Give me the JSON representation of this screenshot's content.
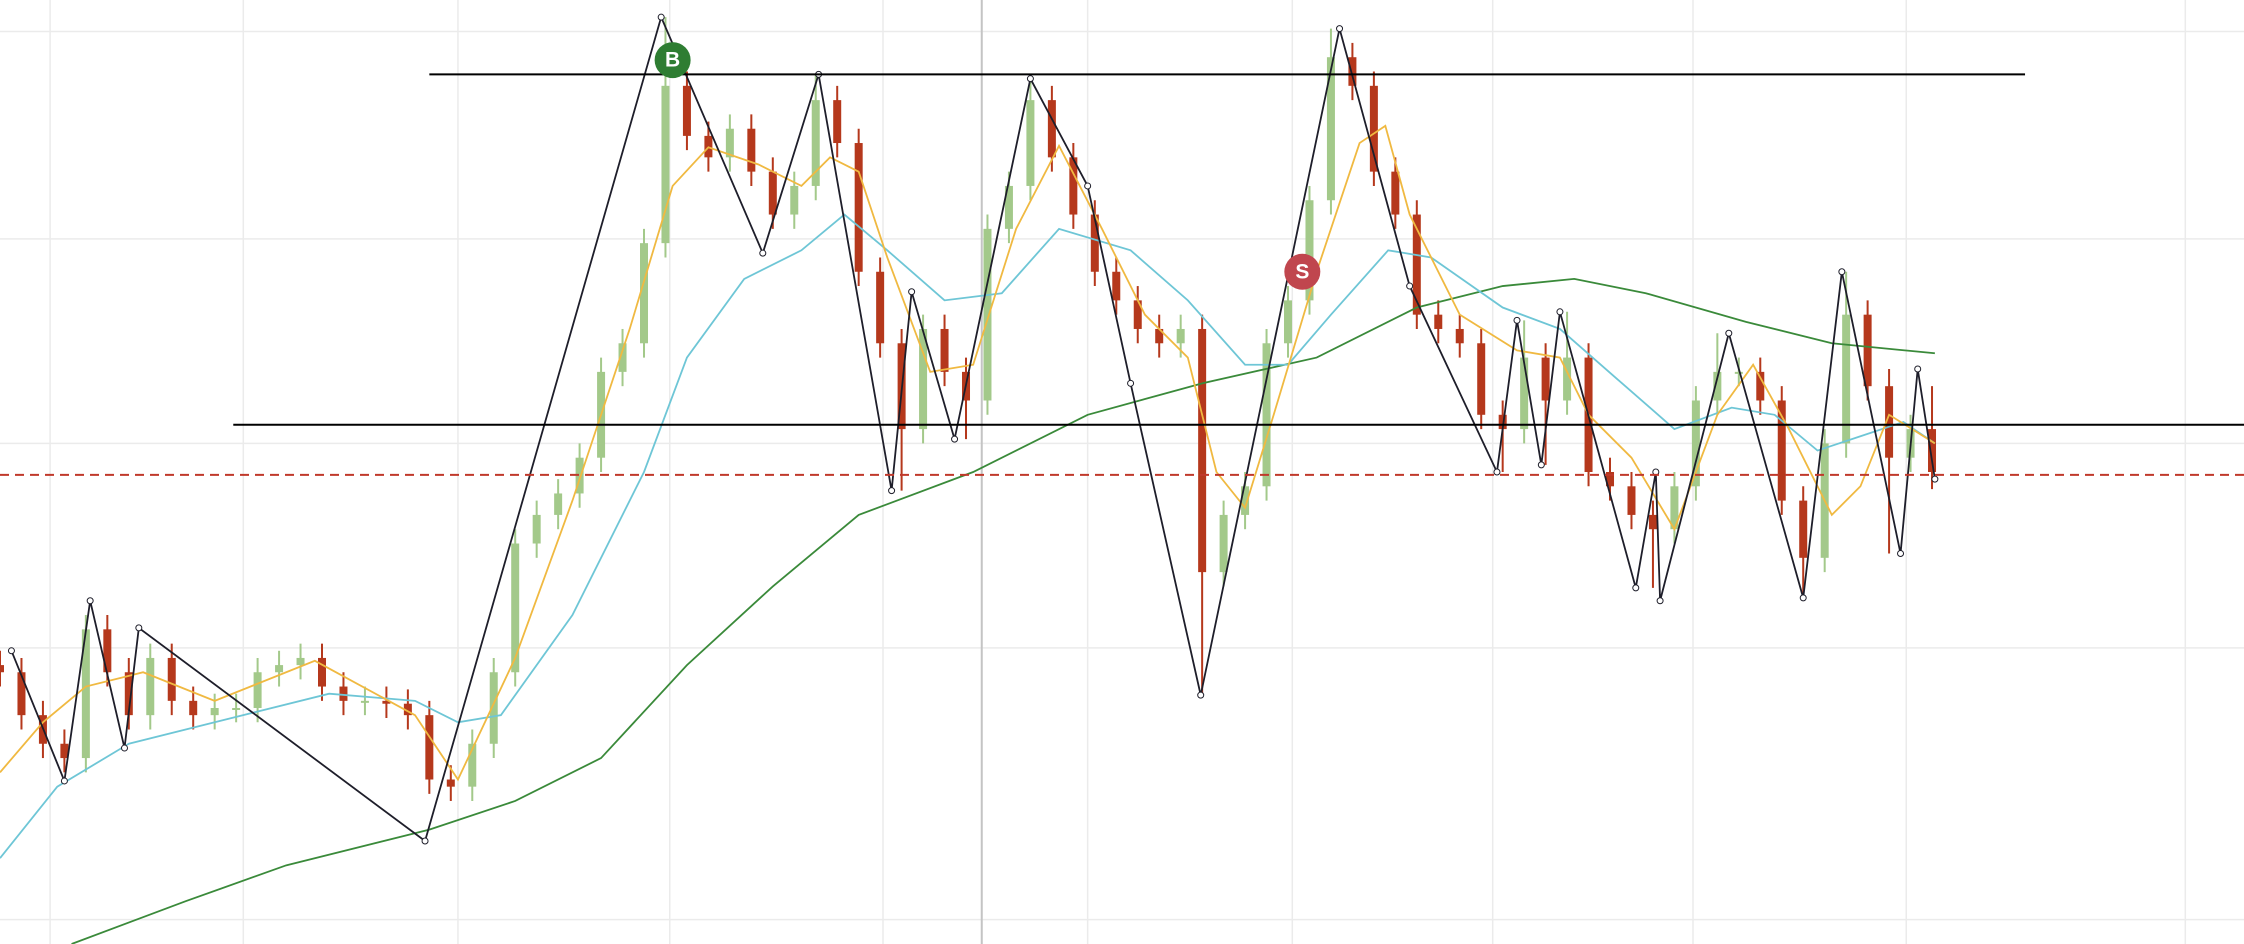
{
  "chart_data": {
    "type": "candlestick",
    "xlim": [
      0,
      1568
    ],
    "ylim": [
      0,
      660
    ],
    "xticks": [
      35,
      170,
      320,
      468,
      617,
      760,
      903,
      1043,
      1183,
      1332,
      1527
    ],
    "yticks": [
      17,
      207,
      350,
      493,
      638
    ],
    "grid": true,
    "grid_color": "#ebebeb",
    "crosshair_x": 686,
    "up_color": "#a3c98a",
    "down_color": "#b5381c",
    "candles": {
      "x": [
        0,
        15,
        30,
        45,
        60,
        75,
        90,
        105,
        120,
        135,
        150,
        165,
        180,
        195,
        210,
        225,
        240,
        255,
        270,
        285,
        300,
        315,
        330,
        345,
        360,
        375,
        390,
        405,
        420,
        435,
        450,
        465,
        480,
        495,
        510,
        525,
        540,
        555,
        570,
        585,
        600,
        615,
        630,
        645,
        660,
        675,
        690,
        705,
        720,
        735,
        750,
        765,
        780,
        795,
        810,
        825,
        840,
        855,
        870,
        885,
        900,
        915,
        930,
        945,
        960,
        975,
        990,
        1005,
        1020,
        1035,
        1050,
        1065,
        1080,
        1095,
        1110,
        1125,
        1140,
        1155,
        1170,
        1185,
        1200,
        1215,
        1230,
        1245,
        1260,
        1275,
        1290,
        1305,
        1320,
        1335,
        1350
      ],
      "open": [
        195,
        190,
        160,
        140,
        130,
        220,
        190,
        160,
        200,
        170,
        160,
        165,
        165,
        190,
        195,
        200,
        180,
        170,
        170,
        168,
        160,
        115,
        110,
        140,
        190,
        280,
        300,
        315,
        340,
        400,
        420,
        490,
        600,
        565,
        550,
        570,
        540,
        510,
        530,
        590,
        560,
        470,
        420,
        360,
        430,
        400,
        380,
        500,
        530,
        590,
        550,
        510,
        470,
        450,
        430,
        420,
        430,
        260,
        300,
        320,
        420,
        450,
        520,
        620,
        600,
        540,
        510,
        440,
        430,
        420,
        370,
        360,
        410,
        380,
        410,
        330,
        320,
        300,
        290,
        320,
        380,
        400,
        400,
        380,
        310,
        270,
        350,
        440,
        390,
        340,
        360
      ],
      "high": [
        205,
        200,
        170,
        150,
        230,
        230,
        200,
        210,
        210,
        180,
        175,
        175,
        200,
        205,
        210,
        210,
        190,
        180,
        180,
        178,
        170,
        125,
        150,
        200,
        290,
        310,
        325,
        350,
        410,
        430,
        500,
        648,
        610,
        575,
        580,
        580,
        550,
        540,
        608,
        600,
        570,
        480,
        430,
        440,
        440,
        410,
        510,
        540,
        605,
        600,
        560,
        520,
        480,
        460,
        440,
        440,
        440,
        310,
        330,
        430,
        460,
        530,
        640,
        630,
        610,
        550,
        520,
        450,
        440,
        430,
        380,
        436,
        420,
        442,
        420,
        340,
        330,
        310,
        330,
        390,
        427,
        410,
        410,
        390,
        320,
        360,
        470,
        450,
        402,
        370,
        390
      ],
      "low": [
        180,
        150,
        130,
        120,
        120,
        180,
        150,
        150,
        160,
        150,
        150,
        155,
        155,
        180,
        185,
        170,
        160,
        160,
        158,
        150,
        105,
        100,
        100,
        130,
        180,
        270,
        290,
        305,
        330,
        390,
        410,
        480,
        555,
        540,
        540,
        530,
        500,
        500,
        520,
        550,
        460,
        410,
        317,
        350,
        390,
        353,
        370,
        490,
        520,
        540,
        500,
        460,
        440,
        420,
        410,
        410,
        174,
        250,
        290,
        310,
        410,
        440,
        510,
        590,
        530,
        500,
        430,
        420,
        410,
        360,
        330,
        350,
        335,
        370,
        320,
        310,
        290,
        249,
        280,
        310,
        370,
        390,
        370,
        300,
        242,
        260,
        340,
        380,
        273,
        330,
        318
      ],
      "close": [
        190,
        160,
        140,
        130,
        220,
        190,
        160,
        200,
        170,
        160,
        165,
        165,
        190,
        195,
        200,
        180,
        170,
        170,
        168,
        160,
        115,
        110,
        140,
        190,
        280,
        300,
        315,
        340,
        400,
        420,
        490,
        600,
        565,
        550,
        570,
        540,
        510,
        530,
        590,
        560,
        470,
        420,
        360,
        430,
        400,
        380,
        500,
        530,
        590,
        550,
        510,
        470,
        450,
        430,
        420,
        430,
        260,
        300,
        320,
        420,
        450,
        520,
        620,
        600,
        540,
        510,
        440,
        430,
        420,
        370,
        360,
        410,
        380,
        410,
        330,
        320,
        300,
        290,
        320,
        380,
        400,
        400,
        380,
        310,
        270,
        350,
        440,
        390,
        340,
        360,
        330
      ]
    },
    "series": [
      {
        "color": "#3a8a3a",
        "x": [
          50,
          130,
          200,
          300,
          360,
          420,
          480,
          540,
          600,
          680,
          760,
          840,
          920,
          990,
          1050,
          1100,
          1150,
          1220,
          1280,
          1352
        ],
        "values": [
          0,
          30,
          55,
          80,
          100,
          130,
          195,
          250,
          300,
          330,
          370,
          392,
          410,
          445,
          460,
          465,
          455,
          435,
          420,
          413
        ]
      },
      {
        "color": "#6ec6d6",
        "x": [
          0,
          40,
          90,
          150,
          230,
          290,
          320,
          350,
          400,
          450,
          480,
          520,
          560,
          590,
          620,
          660,
          700,
          740,
          790,
          830,
          870,
          900,
          930,
          970,
          1000,
          1050,
          1090,
          1130,
          1170,
          1210,
          1240,
          1270,
          1300,
          1330,
          1352
        ],
        "values": [
          60,
          110,
          140,
          155,
          175,
          170,
          155,
          160,
          230,
          330,
          410,
          465,
          485,
          510,
          485,
          450,
          455,
          500,
          485,
          450,
          405,
          405,
          440,
          485,
          480,
          445,
          430,
          395,
          360,
          375,
          370,
          345,
          355,
          365,
          350
        ]
      },
      {
        "color": "#f0b941",
        "x": [
          0,
          30,
          60,
          100,
          150,
          220,
          290,
          320,
          360,
          400,
          440,
          470,
          495,
          530,
          560,
          580,
          600,
          620,
          650,
          680,
          710,
          740,
          770,
          800,
          830,
          850,
          870,
          890,
          920,
          950,
          968,
          985,
          1020,
          1060,
          1090,
          1110,
          1140,
          1170,
          1200,
          1225,
          1250,
          1280,
          1300,
          1320,
          1352
        ],
        "values": [
          120,
          155,
          180,
          190,
          170,
          198,
          160,
          115,
          200,
          310,
          430,
          530,
          557,
          545,
          530,
          550,
          540,
          480,
          400,
          405,
          500,
          558,
          500,
          440,
          410,
          330,
          305,
          370,
          470,
          560,
          572,
          510,
          440,
          415,
          410,
          370,
          340,
          290,
          370,
          405,
          360,
          300,
          320,
          370,
          350
        ]
      },
      {
        "color": "#1e1e2a",
        "x": [
          8,
          45,
          63,
          87,
          97,
          297,
          462,
          533,
          572,
          623,
          637,
          667,
          720,
          760,
          790,
          839,
          936,
          985,
          1046,
          1060,
          1077,
          1090,
          1143,
          1157,
          1160,
          1208,
          1260,
          1287,
          1328,
          1340,
          1352
        ],
        "values": [
          205,
          114,
          240,
          137,
          221,
          72,
          648,
          483,
          608,
          317,
          456,
          353,
          605,
          530,
          392,
          174,
          640,
          460,
          330,
          436,
          335,
          442,
          249,
          330,
          240,
          427,
          242,
          470,
          273,
          402,
          325
        ]
      }
    ],
    "hlines": [
      {
        "y": 608,
        "x": [
          300,
          1415
        ],
        "color": "#000000"
      },
      {
        "y": 363,
        "x": [
          163,
          1568
        ],
        "color": "#000000"
      },
      {
        "y": 328,
        "x": [
          0,
          1568
        ],
        "color": "#c0392b",
        "dashed": true
      }
    ],
    "annotations": [
      {
        "text": "B",
        "x": 470,
        "y": 618,
        "color": "#2e7d32"
      },
      {
        "text": "S",
        "x": 910,
        "y": 470,
        "color": "#c0464e"
      }
    ]
  }
}
